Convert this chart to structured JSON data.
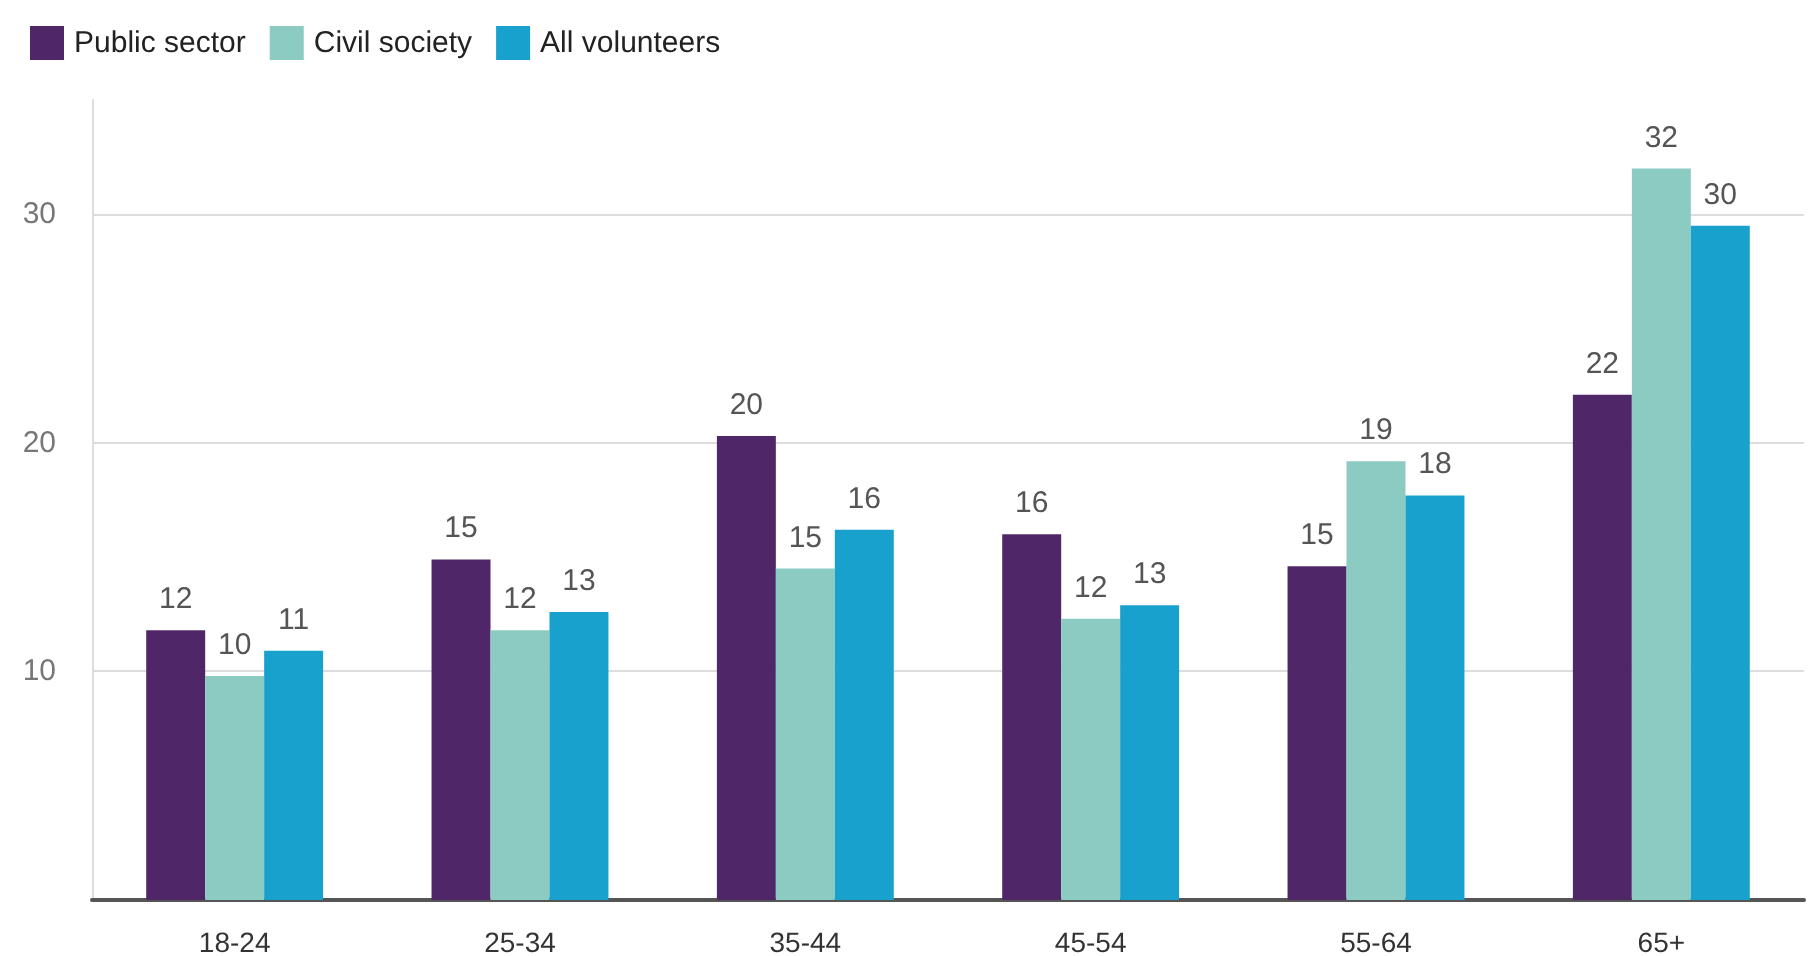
{
  "chart_data": {
    "type": "bar",
    "categories": [
      "18-24",
      "25-34",
      "35-44",
      "45-54",
      "55-64",
      "65+"
    ],
    "series": [
      {
        "name": "Public sector",
        "color": "#4f2769",
        "values": [
          11.8,
          14.9,
          20.3,
          16.0,
          14.6,
          22.1
        ],
        "value_labels": [
          "12",
          "15",
          "20",
          "16",
          "15",
          "22"
        ]
      },
      {
        "name": "Civil society",
        "color": "#8ccbc1",
        "values": [
          9.8,
          11.8,
          14.5,
          12.3,
          19.2,
          32.0
        ],
        "value_labels": [
          "10",
          "12",
          "15",
          "12",
          "19",
          "32"
        ]
      },
      {
        "name": "All volunteers",
        "color": "#19a1cd",
        "values": [
          10.9,
          12.6,
          16.2,
          12.9,
          17.7,
          29.5
        ],
        "value_labels": [
          "11",
          "13",
          "16",
          "13",
          "18",
          "30"
        ]
      }
    ],
    "ylim": [
      0,
      35
    ],
    "yticks": [
      {
        "value": 0,
        "label": null
      },
      10,
      20,
      30
    ],
    "grid": "y",
    "legend": "top left"
  }
}
